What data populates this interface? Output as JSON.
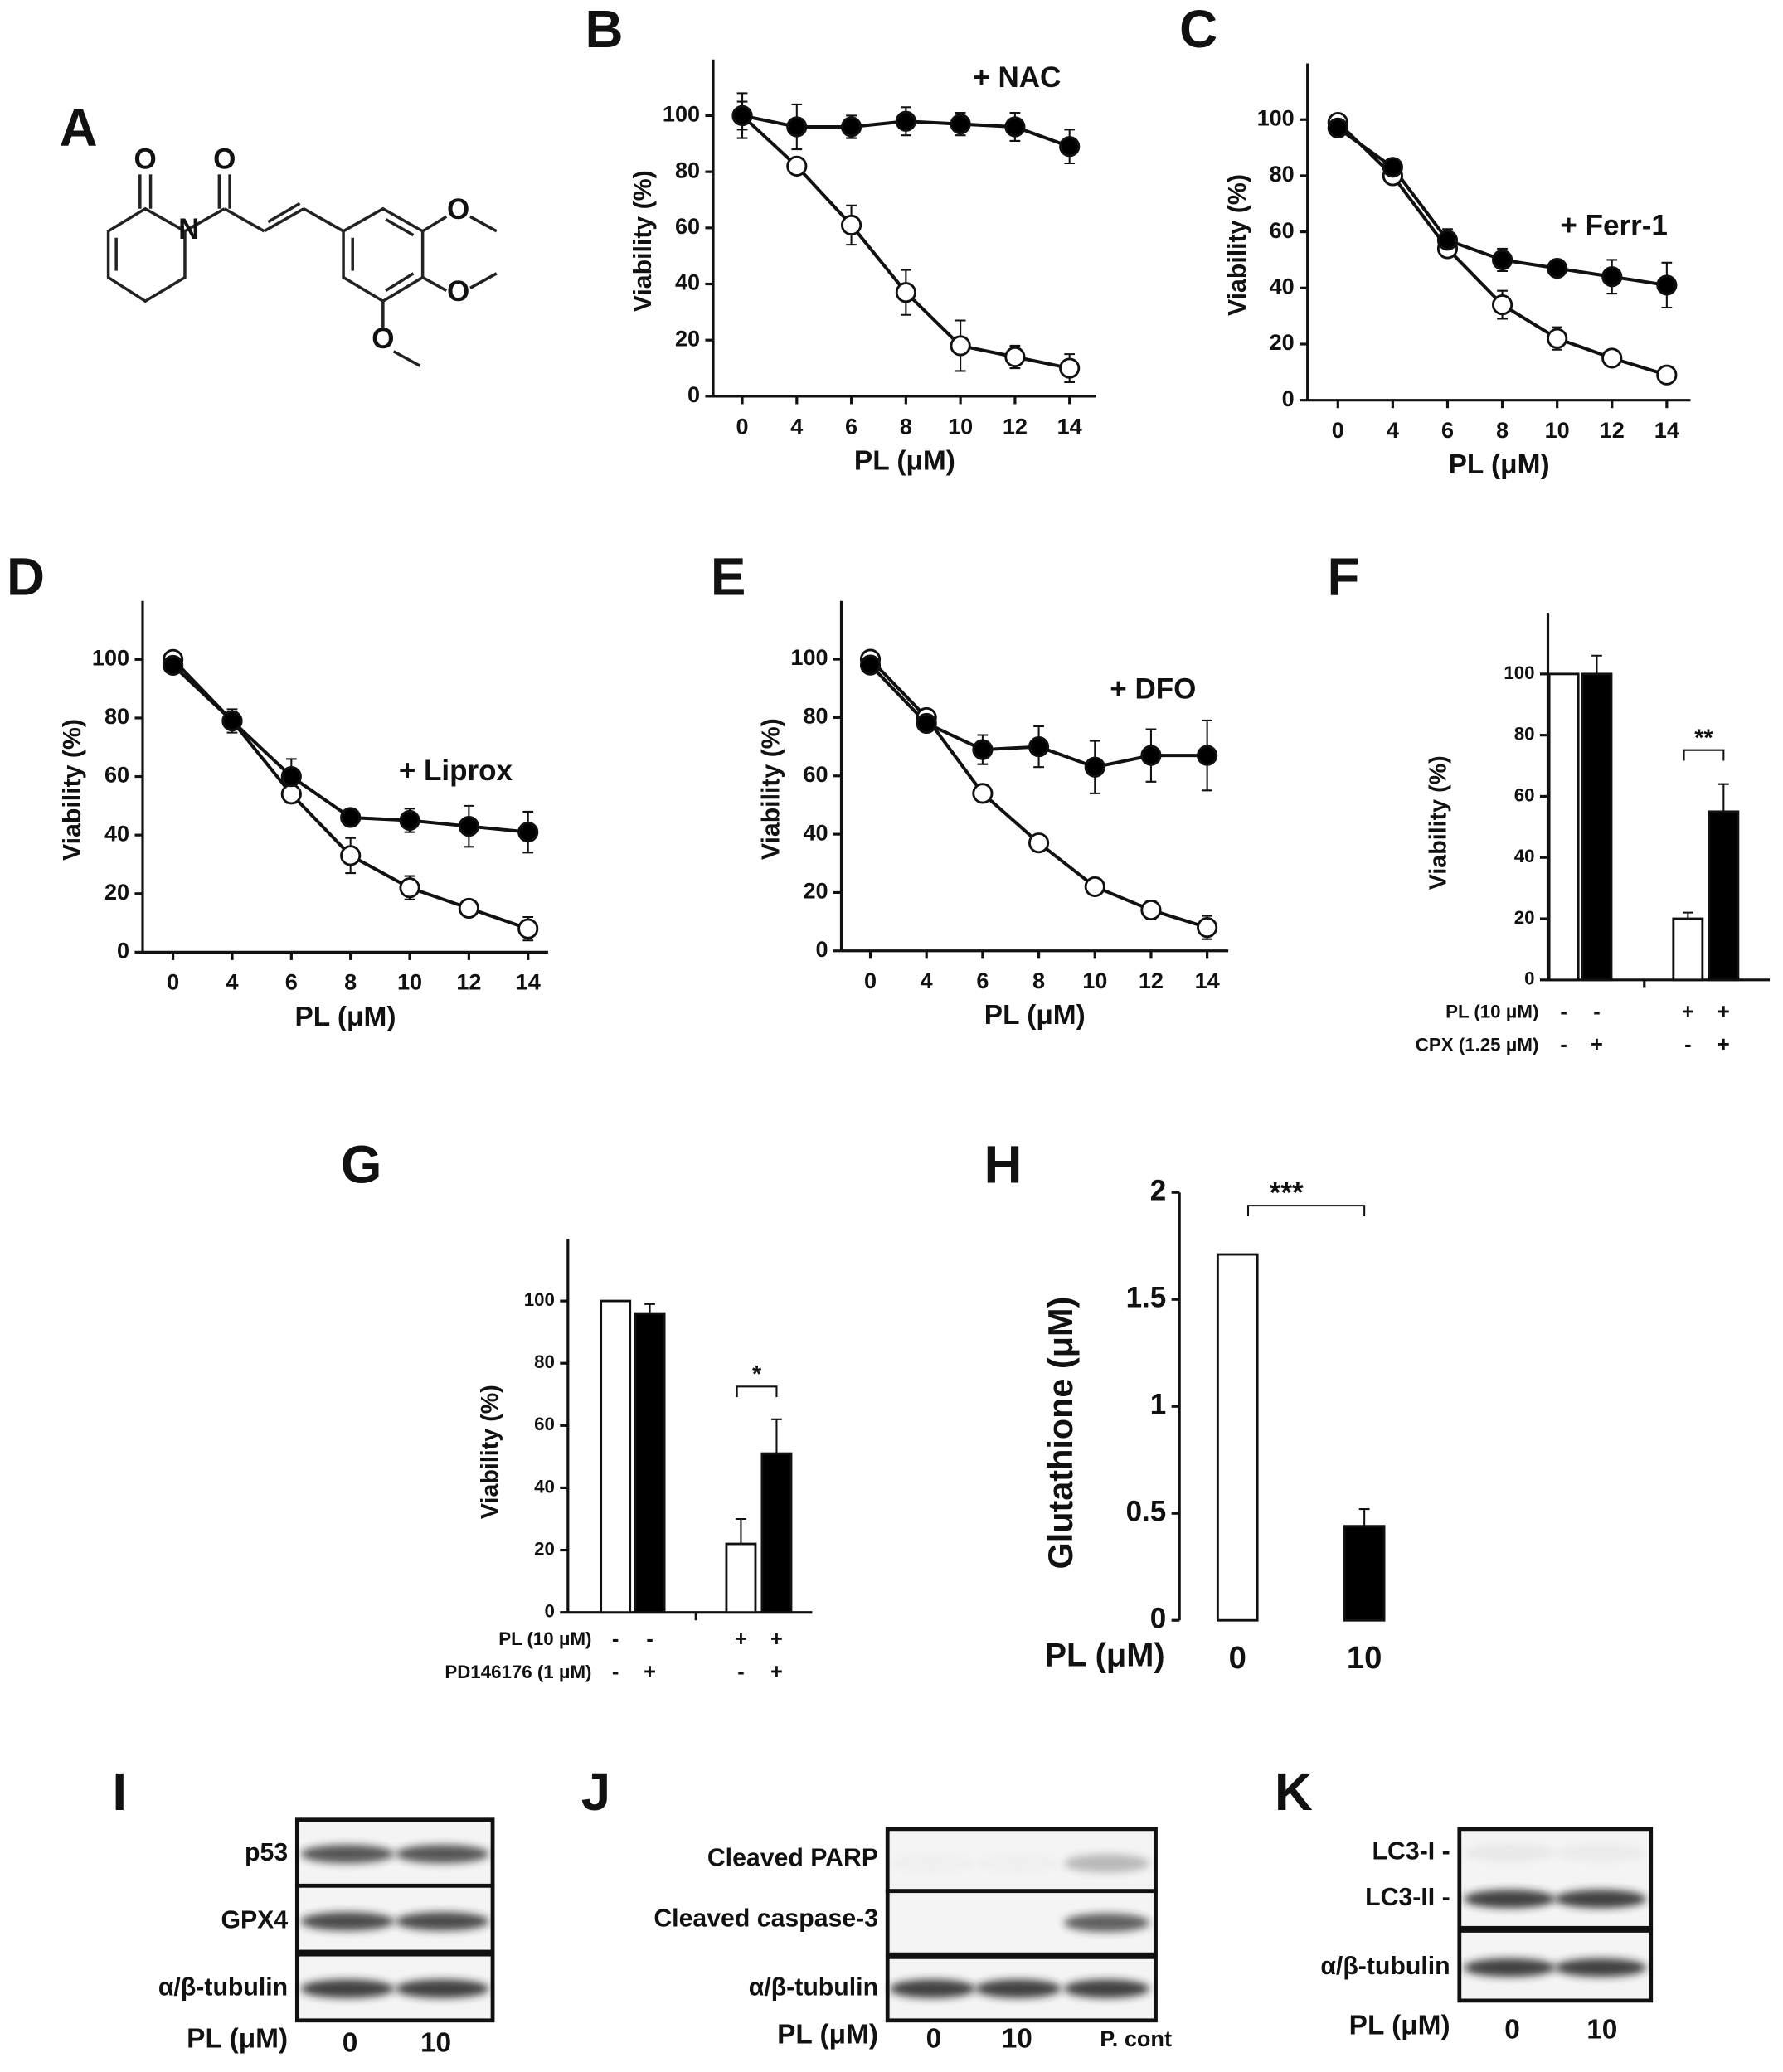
{
  "structure": {
    "panel": "A",
    "atoms": [
      "O",
      "O",
      "N",
      "O",
      "O",
      "O"
    ]
  },
  "chart_data": [
    {
      "panel": "B",
      "type": "line",
      "categories": [
        "0",
        "4",
        "6",
        "8",
        "10",
        "12",
        "14"
      ],
      "x_label": "PL (μM)",
      "y_label": "Viability (%)",
      "ylim": [
        0,
        120
      ],
      "yticks": [
        0,
        20,
        40,
        60,
        80,
        100
      ],
      "series": [
        {
          "name": "+ NAC",
          "color": "#000000",
          "values": [
            100,
            96,
            96,
            98,
            97,
            96,
            89
          ],
          "errors": [
            8,
            8,
            4,
            5,
            4,
            5,
            6
          ]
        },
        {
          "color": "#ffffff",
          "values": [
            100,
            82,
            61,
            37,
            18,
            14,
            10
          ],
          "errors": [
            5,
            2,
            7,
            8,
            9,
            4,
            5
          ]
        }
      ]
    },
    {
      "panel": "C",
      "type": "line",
      "categories": [
        "0",
        "4",
        "6",
        "8",
        "10",
        "12",
        "14"
      ],
      "x_label": "PL (μM)",
      "y_label": "Viability (%)",
      "ylim": [
        0,
        120
      ],
      "yticks": [
        0,
        20,
        40,
        60,
        80,
        100
      ],
      "series": [
        {
          "name": "+ Ferr-1",
          "color": "#000000",
          "values": [
            97,
            83,
            57,
            50,
            47,
            44,
            41
          ],
          "errors": [
            3,
            3,
            4,
            4,
            3,
            6,
            8
          ]
        },
        {
          "color": "#ffffff",
          "values": [
            99,
            80,
            54,
            34,
            22,
            15,
            9
          ],
          "errors": [
            2,
            2,
            3,
            5,
            4,
            2,
            2
          ]
        }
      ]
    },
    {
      "panel": "D",
      "type": "line",
      "categories": [
        "0",
        "4",
        "6",
        "8",
        "10",
        "12",
        "14"
      ],
      "x_label": "PL (μM)",
      "y_label": "Viability (%)",
      "ylim": [
        0,
        120
      ],
      "yticks": [
        0,
        20,
        40,
        60,
        80,
        100
      ],
      "series": [
        {
          "name": "+ Liprox",
          "color": "#000000",
          "values": [
            98,
            79,
            60,
            46,
            45,
            43,
            41
          ],
          "errors": [
            2,
            4,
            6,
            3,
            4,
            7,
            7
          ]
        },
        {
          "color": "#ffffff",
          "values": [
            100,
            79,
            54,
            33,
            22,
            15,
            8
          ],
          "errors": [
            2,
            3,
            3,
            6,
            4,
            2,
            4
          ]
        }
      ]
    },
    {
      "panel": "E",
      "type": "line",
      "categories": [
        "0",
        "4",
        "6",
        "8",
        "10",
        "12",
        "14"
      ],
      "x_label": "PL (μM)",
      "y_label": "Viability (%)",
      "ylim": [
        0,
        120
      ],
      "yticks": [
        0,
        20,
        40,
        60,
        80,
        100
      ],
      "series": [
        {
          "name": "+ DFO",
          "color": "#000000",
          "values": [
            98,
            78,
            69,
            70,
            63,
            67,
            67
          ],
          "errors": [
            2,
            2,
            5,
            7,
            9,
            9,
            12
          ]
        },
        {
          "color": "#ffffff",
          "values": [
            100,
            80,
            54,
            37,
            22,
            14,
            8
          ],
          "errors": [
            1,
            2,
            2,
            1,
            2,
            3,
            4
          ]
        }
      ]
    },
    {
      "panel": "F",
      "type": "bar",
      "y_label": "Viability (%)",
      "ylim": [
        0,
        120
      ],
      "yticks": [
        0,
        20,
        40,
        60,
        80,
        100
      ],
      "values": [
        100,
        100,
        20,
        55
      ],
      "errors": [
        null,
        6,
        2,
        9
      ],
      "colors": [
        "#ffffff",
        "#000000",
        "#ffffff",
        "#000000"
      ],
      "conditions": [
        {
          "name": "PL (10 μM)",
          "values": [
            "-",
            "-",
            "+",
            "+"
          ]
        },
        {
          "name": "CPX (1.25 μM)",
          "values": [
            "-",
            "+",
            "-",
            "+"
          ]
        }
      ],
      "significance": "**"
    },
    {
      "panel": "G",
      "type": "bar",
      "y_label": "Viability (%)",
      "ylim": [
        0,
        120
      ],
      "yticks": [
        0,
        20,
        40,
        60,
        80,
        100
      ],
      "values": [
        100,
        96,
        22,
        51
      ],
      "errors": [
        null,
        3,
        8,
        11
      ],
      "colors": [
        "#ffffff",
        "#000000",
        "#ffffff",
        "#000000"
      ],
      "conditions": [
        {
          "name": "PL (10 μM)",
          "values": [
            "-",
            "-",
            "+",
            "+"
          ]
        },
        {
          "name": "PD146176 (1 μM)",
          "values": [
            "-",
            "+",
            "-",
            "+"
          ]
        }
      ],
      "significance": "*"
    },
    {
      "panel": "H",
      "type": "bar",
      "x_label": "PL (μM)",
      "y_label": "Glutathione (μM)",
      "ylim": [
        0,
        2
      ],
      "yticks": [
        0,
        0.5,
        1,
        1.5,
        2
      ],
      "categories": [
        "0",
        "10"
      ],
      "values": [
        1.71,
        0.44
      ],
      "errors": [
        null,
        0.08
      ],
      "colors": [
        "#ffffff",
        "#000000"
      ],
      "significance": "***"
    }
  ],
  "blots": [
    {
      "panel": "I",
      "rows": [
        "p53",
        "GPX4",
        "α/β-tubulin"
      ],
      "lanes": [
        "0",
        "10"
      ],
      "x_label": "PL (μM)"
    },
    {
      "panel": "J",
      "rows": [
        "Cleaved PARP",
        "Cleaved caspase-3",
        "α/β-tubulin"
      ],
      "lanes": [
        "0",
        "10",
        "P. cont"
      ],
      "x_label": "PL (μM)"
    },
    {
      "panel": "K",
      "rows": [
        "LC3-I -",
        "LC3-II -",
        "α/β-tubulin"
      ],
      "lanes": [
        "0",
        "10"
      ],
      "x_label": "PL (μM)"
    }
  ]
}
